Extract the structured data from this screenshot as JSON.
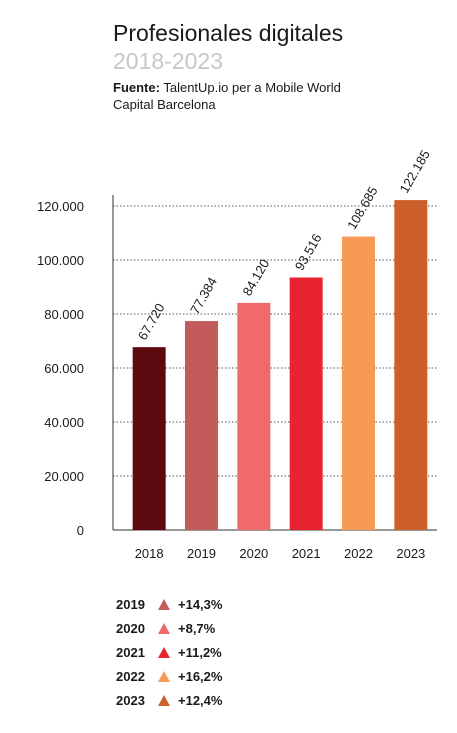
{
  "header": {
    "title": "Profesionales digitales",
    "subtitle": "2018-2023",
    "source_label": "Fuente:",
    "source_text": "TalentUp.io per a Mobile World Capital Barcelona"
  },
  "chart_data": {
    "type": "bar",
    "categories": [
      "2018",
      "2019",
      "2020",
      "2021",
      "2022",
      "2023"
    ],
    "values": [
      67720,
      77384,
      84120,
      93516,
      108685,
      122185
    ],
    "value_labels": [
      "67.720",
      "77.384",
      "84.120",
      "93.516",
      "108.685",
      "122.185"
    ],
    "bar_colors": [
      "#5c0a10",
      "#c45b5b",
      "#f06a6a",
      "#e82430",
      "#f79a55",
      "#cc5f2a"
    ],
    "ylim": [
      0,
      120000
    ],
    "yticks": [
      0,
      20000,
      40000,
      60000,
      80000,
      100000,
      120000
    ],
    "ytick_labels": [
      "0",
      "20.000",
      "40.000",
      "60.000",
      "80.000",
      "100.000",
      "120.000"
    ],
    "grid": true,
    "xlabel": "",
    "ylabel": ""
  },
  "legend": {
    "items": [
      {
        "year": "2019",
        "change": "+14,3%",
        "color": "#c45b5b"
      },
      {
        "year": "2020",
        "change": " +8,7%",
        "color": "#f06a6a"
      },
      {
        "year": "2021",
        "change": "+11,2%",
        "color": "#e82430"
      },
      {
        "year": "2022",
        "change": "+16,2%",
        "color": "#f79a55"
      },
      {
        "year": "2023",
        "change": "+12,4%",
        "color": "#cc5f2a"
      }
    ]
  }
}
